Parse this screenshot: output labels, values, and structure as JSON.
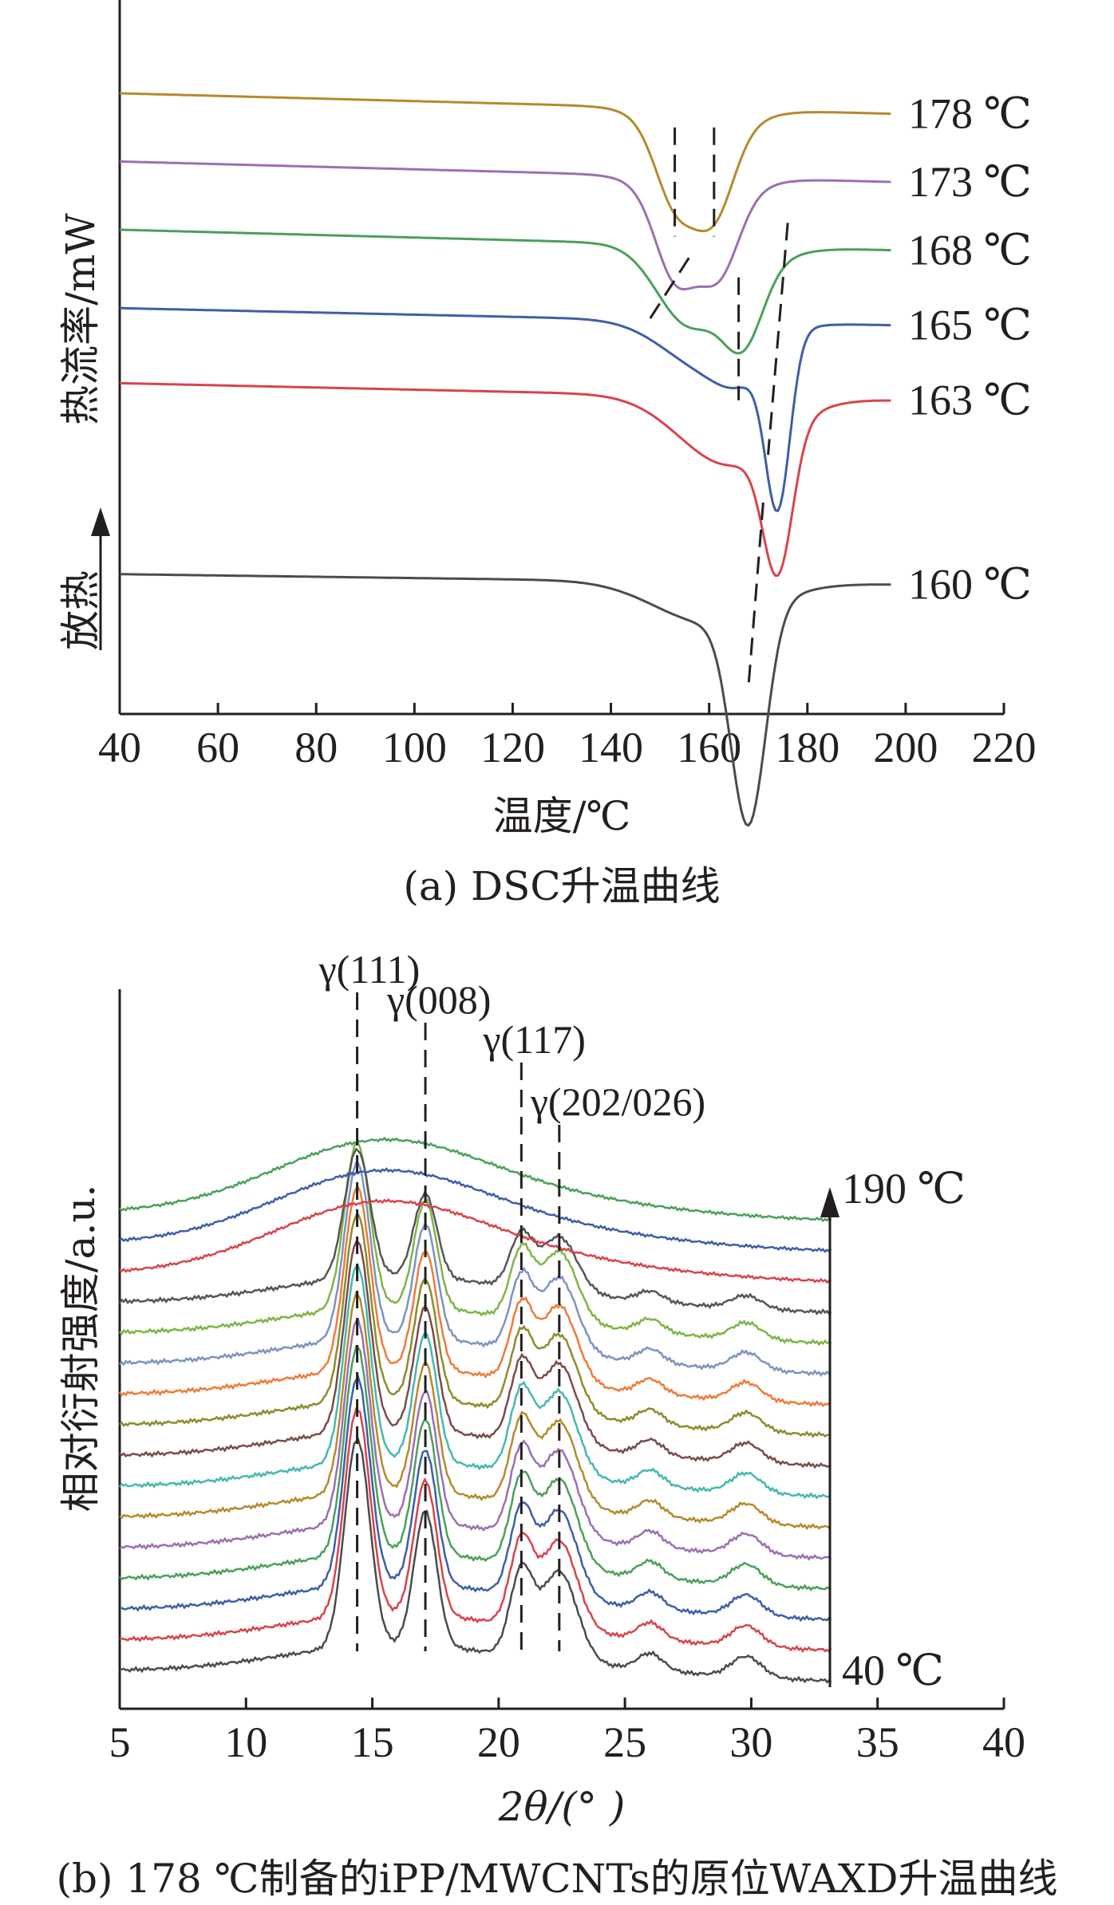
{
  "chart_data": [
    {
      "type": "line",
      "title": "",
      "caption": "(a) DSC升温曲线",
      "xlabel": "温度/℃",
      "ylabel": "热流率/mW",
      "exo_label": "放热",
      "xlim": [
        40,
        220
      ],
      "xticks": [
        40,
        60,
        80,
        100,
        120,
        140,
        160,
        180,
        200,
        220
      ],
      "series": [
        {
          "name": "178 ℃",
          "color": "#b58a2c",
          "baseline": 0.88,
          "slope": 0.06,
          "dips": [
            {
              "c": 153,
              "w": 4,
              "d": 0.1
            },
            {
              "c": 161,
              "w": 4,
              "d": 0.11
            },
            {
              "c": 158,
              "w": 8,
              "d": 0.05
            }
          ]
        },
        {
          "name": "173 ℃",
          "color": "#9b6fb3",
          "baseline": 0.78,
          "slope": 0.06,
          "dips": [
            {
              "c": 153,
              "w": 4,
              "d": 0.11
            },
            {
              "c": 162,
              "w": 4,
              "d": 0.1
            },
            {
              "c": 158,
              "w": 8,
              "d": 0.05
            }
          ]
        },
        {
          "name": "168 ℃",
          "color": "#4aa05a",
          "baseline": 0.68,
          "slope": 0.06,
          "dips": [
            {
              "c": 155,
              "w": 6,
              "d": 0.08
            },
            {
              "c": 167,
              "w": 4,
              "d": 0.1
            },
            {
              "c": 162,
              "w": 9,
              "d": 0.05
            }
          ]
        },
        {
          "name": "165 ℃",
          "color": "#3e5ea8",
          "baseline": 0.57,
          "slope": 0.05,
          "dips": [
            {
              "c": 160,
              "w": 9,
              "d": 0.07
            },
            {
              "c": 174,
              "w": 2.5,
              "d": 0.24
            },
            {
              "c": 167,
              "w": 5,
              "d": 0.04
            }
          ]
        },
        {
          "name": "163 ℃",
          "color": "#d9434b",
          "baseline": 0.46,
          "slope": 0.05,
          "dips": [
            {
              "c": 164,
              "w": 10,
              "d": 0.1
            },
            {
              "c": 174,
              "w": 3,
              "d": 0.2
            }
          ]
        },
        {
          "name": "160 ℃",
          "color": "#4b4b4b",
          "baseline": 0.19,
          "slope": 0.03,
          "dips": [
            {
              "c": 160,
              "w": 11,
              "d": 0.06
            },
            {
              "c": 168,
              "w": 3.5,
              "d": 0.31
            }
          ]
        }
      ]
    },
    {
      "type": "line",
      "title": "",
      "caption": "(b) 178 ℃制备的iPP/MWCNTs的原位WAXD升温曲线",
      "xlabel": "2θ/(° )",
      "ylabel": "相对衍射强度/a.u.",
      "xlim": [
        5,
        40
      ],
      "xticks": [
        5,
        10,
        15,
        20,
        25,
        30,
        35,
        40
      ],
      "temp_low": "40 ℃",
      "temp_high": "190 ℃",
      "peak_labels": [
        {
          "text": "γ(111)",
          "x": 14.4
        },
        {
          "text": "γ(008)",
          "x": 17.1
        },
        {
          "text": "γ(117)",
          "x": 20.9
        },
        {
          "text": "γ(202/026)",
          "x": 22.4
        }
      ],
      "peaks": [
        {
          "x": 14.4,
          "w": 0.5,
          "h": 1.0
        },
        {
          "x": 17.1,
          "w": 0.45,
          "h": 0.65
        },
        {
          "x": 20.9,
          "w": 0.45,
          "h": 0.4
        },
        {
          "x": 22.4,
          "w": 0.7,
          "h": 0.43
        },
        {
          "x": 26.0,
          "w": 0.5,
          "h": 0.08
        },
        {
          "x": 29.8,
          "w": 0.6,
          "h": 0.1
        }
      ],
      "series": [
        {
          "color": "#4b4b4b",
          "crystalline": 1.0
        },
        {
          "color": "#d9434b",
          "crystalline": 1.0
        },
        {
          "color": "#3e5ea8",
          "crystalline": 1.0
        },
        {
          "color": "#4aa05a",
          "crystalline": 1.0
        },
        {
          "color": "#9b6fb3",
          "crystalline": 0.98
        },
        {
          "color": "#b58a2c",
          "crystalline": 0.96
        },
        {
          "color": "#45b8b0",
          "crystalline": 0.95
        },
        {
          "color": "#7a4b4b",
          "crystalline": 0.92
        },
        {
          "color": "#8c8c2c",
          "crystalline": 0.9
        },
        {
          "color": "#ee7b3a",
          "crystalline": 0.88
        },
        {
          "color": "#7b93c1",
          "crystalline": 0.85
        },
        {
          "color": "#7db545",
          "crystalline": 0.8
        },
        {
          "color": "#555555",
          "crystalline": 0.62
        },
        {
          "color": "#d9434b",
          "crystalline": 0.0
        },
        {
          "color": "#3e5ea8",
          "crystalline": 0.0
        },
        {
          "color": "#4aa05a",
          "crystalline": 0.0
        }
      ]
    }
  ]
}
